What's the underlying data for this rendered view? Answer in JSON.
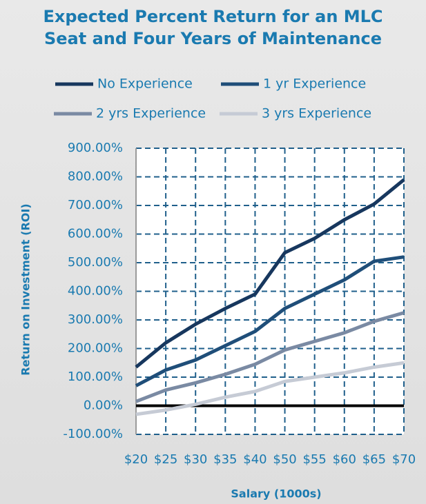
{
  "chart_data": {
    "type": "line",
    "title": "Expected Percent Return for an MLC Seat and Four Years of Maintenance",
    "x_label": "Salary (1000s)",
    "y_label": "Return on Investment (ROI)",
    "categories": [
      "$20",
      "$25",
      "$30",
      "$35",
      "$40",
      "$50",
      "$55",
      "$60",
      "$65",
      "$70"
    ],
    "series": [
      {
        "name": "No Experience",
        "color": "#17375e",
        "values": [
          135,
          220,
          285,
          340,
          390,
          535,
          585,
          650,
          705,
          790
        ]
      },
      {
        "name": "1 yr Experience",
        "color": "#1f4e79",
        "values": [
          70,
          125,
          160,
          210,
          260,
          340,
          390,
          440,
          505,
          520
        ]
      },
      {
        "name": "2 yrs Experience",
        "color": "#7a8aa3",
        "values": [
          15,
          55,
          80,
          110,
          145,
          195,
          225,
          255,
          295,
          325
        ]
      },
      {
        "name": "3 yrs Experience",
        "color": "#c6cbd5",
        "values": [
          -30,
          -15,
          5,
          30,
          50,
          85,
          100,
          115,
          135,
          150
        ]
      }
    ],
    "ylim": [
      -100,
      900
    ],
    "yticks": [
      {
        "value": -100,
        "label": "-100.00%"
      },
      {
        "value": 0,
        "label": "0.00%"
      },
      {
        "value": 100,
        "label": "100.00%"
      },
      {
        "value": 200,
        "label": "200.00%"
      },
      {
        "value": 300,
        "label": "300.00%"
      },
      {
        "value": 400,
        "label": "400.00%"
      },
      {
        "value": 500,
        "label": "500.00%"
      },
      {
        "value": 600,
        "label": "600.00%"
      },
      {
        "value": 700,
        "label": "700.00%"
      },
      {
        "value": 800,
        "label": "800.00%"
      },
      {
        "value": 900,
        "label": "900.00%"
      }
    ],
    "grid": true,
    "legend": "top"
  }
}
